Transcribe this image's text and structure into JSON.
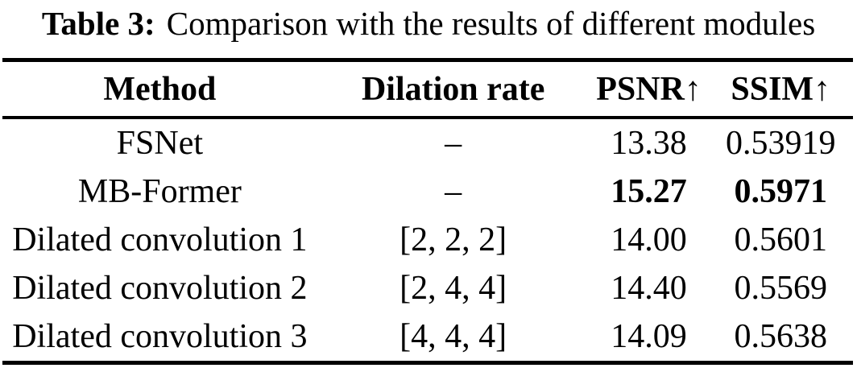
{
  "caption": {
    "label": "Table 3:",
    "text": "Comparison with the results of different modules"
  },
  "table": {
    "columns": [
      {
        "label": "Method",
        "arrow": ""
      },
      {
        "label": "Dilation rate",
        "arrow": ""
      },
      {
        "label": "PSNR",
        "arrow": "↑"
      },
      {
        "label": "SSIM",
        "arrow": "↑"
      }
    ],
    "rows": [
      {
        "method": "FSNet",
        "dilation": "–",
        "psnr": "13.38",
        "ssim": "0.53919",
        "bold": false
      },
      {
        "method": "MB-Former",
        "dilation": "–",
        "psnr": "15.27",
        "ssim": "0.5971",
        "bold": true
      },
      {
        "method": "Dilated convolution 1",
        "dilation": "[2, 2, 2]",
        "psnr": "14.00",
        "ssim": "0.5601",
        "bold": false
      },
      {
        "method": "Dilated convolution 2",
        "dilation": "[2, 4, 4]",
        "psnr": "14.40",
        "ssim": "0.5569",
        "bold": false
      },
      {
        "method": "Dilated convolution 3",
        "dilation": "[4, 4, 4]",
        "psnr": "14.09",
        "ssim": "0.5638",
        "bold": false
      }
    ]
  },
  "colors": {
    "text": "#000000",
    "background": "#ffffff",
    "rule": "#000000"
  }
}
